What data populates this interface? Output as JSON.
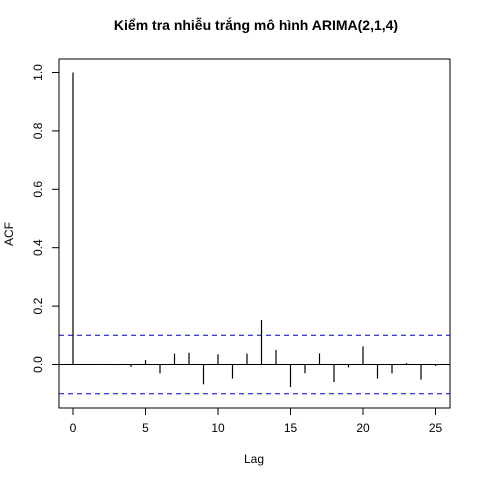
{
  "chart_data": {
    "type": "bar",
    "title": "Kiểm tra nhiễu trắng mô hình ARIMA(2,1,4)",
    "xlabel": "Lag",
    "ylabel": "ACF",
    "xlim": [
      -1,
      26
    ],
    "ylim": [
      -0.15,
      1.05
    ],
    "x_ticks": [
      "0",
      "5",
      "10",
      "15",
      "20",
      "25"
    ],
    "y_ticks": [
      "0.0",
      "0.2",
      "0.4",
      "0.6",
      "0.8",
      "1.0"
    ],
    "confidence_bounds": [
      0.1,
      -0.1
    ],
    "confidence_color": "#0000cc",
    "series": [
      {
        "lags": [
          0,
          1,
          2,
          3,
          4,
          5,
          6,
          7,
          8,
          9,
          10,
          11,
          12,
          13,
          14,
          15,
          16,
          17,
          18,
          19,
          20,
          21,
          22,
          23,
          24,
          25
        ],
        "values": [
          1.0,
          0.0,
          0.002,
          -0.002,
          -0.008,
          0.015,
          -0.03,
          0.037,
          0.04,
          -0.068,
          0.035,
          -0.048,
          0.037,
          0.152,
          0.05,
          -0.077,
          -0.03,
          0.038,
          -0.06,
          -0.01,
          0.062,
          -0.048,
          -0.03,
          0.005,
          -0.052,
          -0.005
        ]
      }
    ]
  }
}
